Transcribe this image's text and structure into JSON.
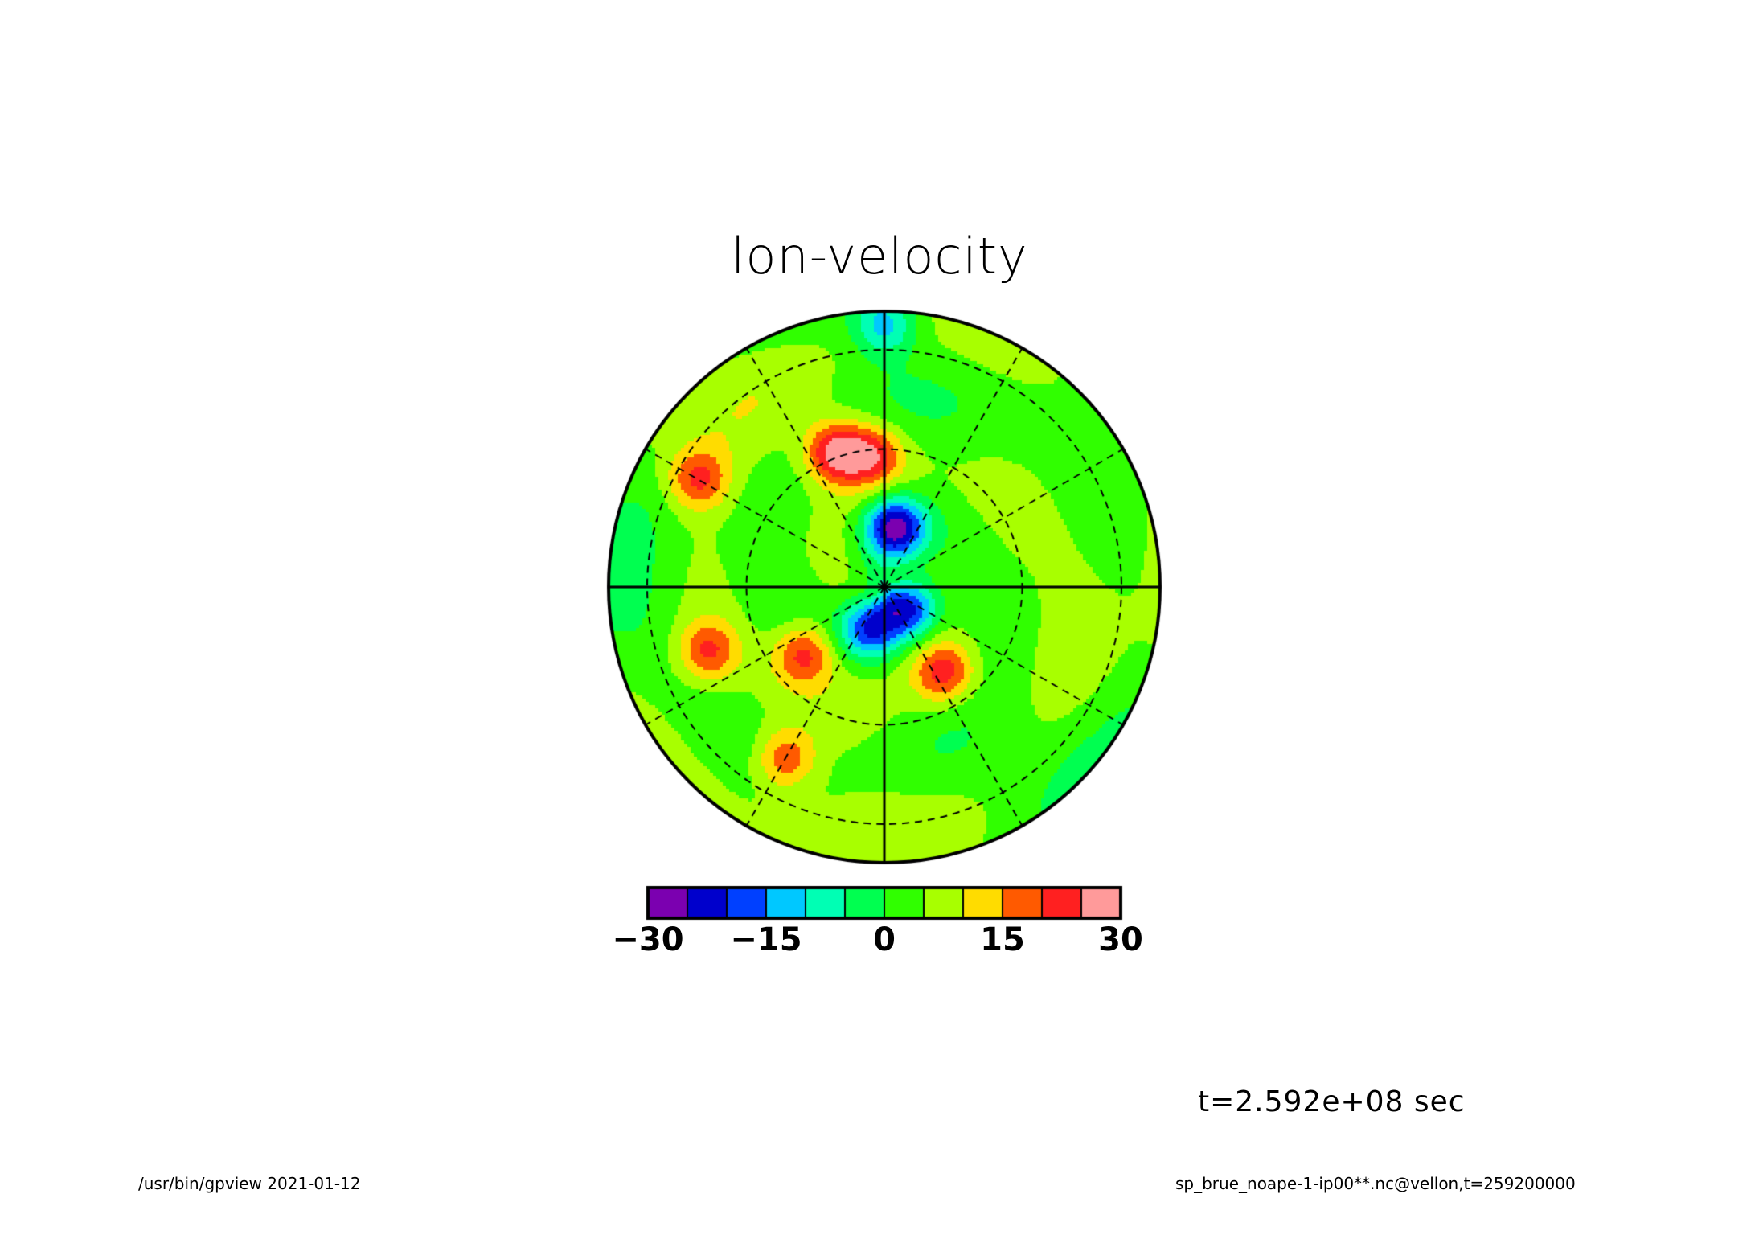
{
  "title": "lon-velocity",
  "time_label": "t=2.592e+08 sec",
  "footer": {
    "left": "/usr/bin/gpview  2021-01-12",
    "right": "sp_brue_noape-1-ip00**.nc@vellon,t=259200000"
  },
  "chart_data": {
    "type": "heatmap",
    "projection": "polar-stereographic",
    "variable": "lon-velocity",
    "color_levels": [
      -30,
      -25,
      -20,
      -15,
      -10,
      -5,
      0,
      5,
      10,
      15,
      20,
      25,
      30
    ],
    "colorbar": {
      "ticks": [
        "-30",
        "-15",
        "0",
        "15",
        "30"
      ],
      "tick_values": [
        -30,
        -15,
        0,
        15,
        30
      ],
      "colors": [
        "#7b00b0",
        "#0000cc",
        "#0040ff",
        "#00c8ff",
        "#00ffb4",
        "#00ff50",
        "#30ff00",
        "#a8ff00",
        "#ffdc00",
        "#ff5a00",
        "#ff2020",
        "#ff9a9a"
      ]
    },
    "grid": true,
    "features": [
      {
        "value": -27,
        "r": 0.22,
        "theta": 80
      },
      {
        "value": -20,
        "r": 0.12,
        "theta": -40
      },
      {
        "value": -18,
        "r": 0.16,
        "theta": -110
      },
      {
        "value": 22,
        "r": 0.48,
        "theta": 95
      },
      {
        "value": 27,
        "r": 0.52,
        "theta": 110
      },
      {
        "value": 22,
        "r": 0.38,
        "theta": -140
      },
      {
        "value": 22,
        "r": 0.38,
        "theta": -55
      },
      {
        "value": 20,
        "r": 0.78,
        "theta": 150
      },
      {
        "value": 20,
        "r": 0.68,
        "theta": -160
      },
      {
        "value": 20,
        "r": 0.72,
        "theta": -120
      },
      {
        "value": -12,
        "r": 0.95,
        "theta": 90
      }
    ]
  }
}
